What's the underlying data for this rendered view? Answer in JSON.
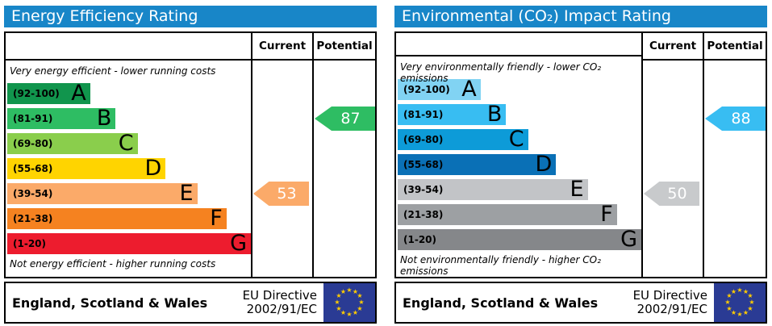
{
  "colors": {
    "header_bar_blue": "#1886c8",
    "eu_flag_blue": "#2a3b94",
    "eu_star_yellow": "#ffcc00",
    "border_black": "#000000"
  },
  "chart_data": [
    {
      "type": "bar",
      "title": "Energy Efficiency Rating",
      "categories": [
        "A (92-100)",
        "B (81-91)",
        "C (69-80)",
        "D (55-68)",
        "E (39-54)",
        "F (21-38)",
        "G (1-20)"
      ],
      "current": 53,
      "current_band": "E",
      "potential": 87,
      "potential_band": "B",
      "top_note": "Very energy efficient - lower running costs",
      "bottom_note": "Not energy efficient - higher running costs",
      "footer": "England, Scotland & Wales",
      "directive": "EU Directive 2002/91/EC"
    },
    {
      "type": "bar",
      "title": "Environmental (CO₂) Impact Rating",
      "categories": [
        "A (92-100)",
        "B (81-91)",
        "C (69-80)",
        "D (55-68)",
        "E (39-54)",
        "F (21-38)",
        "G (1-20)"
      ],
      "current": 50,
      "current_band": "E",
      "potential": 88,
      "potential_band": "B",
      "top_note": "Very environmentally friendly - lower CO₂ emissions",
      "bottom_note": "Not environmentally friendly - higher CO₂ emissions",
      "footer": "England, Scotland & Wales",
      "directive": "EU Directive 2002/91/EC"
    }
  ],
  "panels": {
    "left": {
      "title": "Energy Efficiency Rating",
      "columns": {
        "current": "Current",
        "potential": "Potential"
      },
      "top_caption": "Very energy efficient - lower running costs",
      "bottom_caption": "Not energy efficient - higher running costs",
      "bands": [
        {
          "letter": "A",
          "range": "(92-100)",
          "color": "#11954d",
          "width_pct": 34
        },
        {
          "letter": "B",
          "range": "(81-91)",
          "color": "#2ebd63",
          "width_pct": 44.5
        },
        {
          "letter": "C",
          "range": "(69-80)",
          "color": "#8ace4c",
          "width_pct": 53.5
        },
        {
          "letter": "D",
          "range": "(55-68)",
          "color": "#ffd400",
          "width_pct": 65
        },
        {
          "letter": "E",
          "range": "(39-54)",
          "color": "#fbaa69",
          "width_pct": 78
        },
        {
          "letter": "F",
          "range": "(21-38)",
          "color": "#f58220",
          "width_pct": 90
        },
        {
          "letter": "G",
          "range": "(1-20)",
          "color": "#ed1c2e",
          "width_pct": 100
        }
      ],
      "current": {
        "value": "53",
        "band": "E",
        "row": 4,
        "color": "#fbaa69"
      },
      "potential": {
        "value": "87",
        "band": "B",
        "row": 1,
        "color": "#2ebd63"
      },
      "footer": {
        "region": "England, Scotland & Wales",
        "directive_line1": "EU Directive",
        "directive_line2": "2002/91/EC"
      }
    },
    "right": {
      "title": "Environmental (CO₂) Impact Rating",
      "columns": {
        "current": "Current",
        "potential": "Potential"
      },
      "top_caption": "Very environmentally friendly - lower CO₂ emissions",
      "bottom_caption": "Not environmentally friendly - higher CO₂ emissions",
      "bands": [
        {
          "letter": "A",
          "range": "(92-100)",
          "color": "#81d3f3",
          "width_pct": 34
        },
        {
          "letter": "B",
          "range": "(81-91)",
          "color": "#38bdf2",
          "width_pct": 44.5
        },
        {
          "letter": "C",
          "range": "(69-80)",
          "color": "#0d9bd8",
          "width_pct": 53.5
        },
        {
          "letter": "D",
          "range": "(55-68)",
          "color": "#0a70b6",
          "width_pct": 65
        },
        {
          "letter": "E",
          "range": "(39-54)",
          "color": "#c2c4c7",
          "width_pct": 78
        },
        {
          "letter": "F",
          "range": "(21-38)",
          "color": "#9da0a3",
          "width_pct": 90
        },
        {
          "letter": "G",
          "range": "(1-20)",
          "color": "#85878a",
          "width_pct": 100
        }
      ],
      "current": {
        "value": "50",
        "band": "E",
        "row": 4,
        "color": "#c8cacc"
      },
      "potential": {
        "value": "88",
        "band": "B",
        "row": 1,
        "color": "#38bdf2"
      },
      "footer": {
        "region": "England, Scotland & Wales",
        "directive_line1": "EU Directive",
        "directive_line2": "2002/91/EC"
      }
    }
  }
}
